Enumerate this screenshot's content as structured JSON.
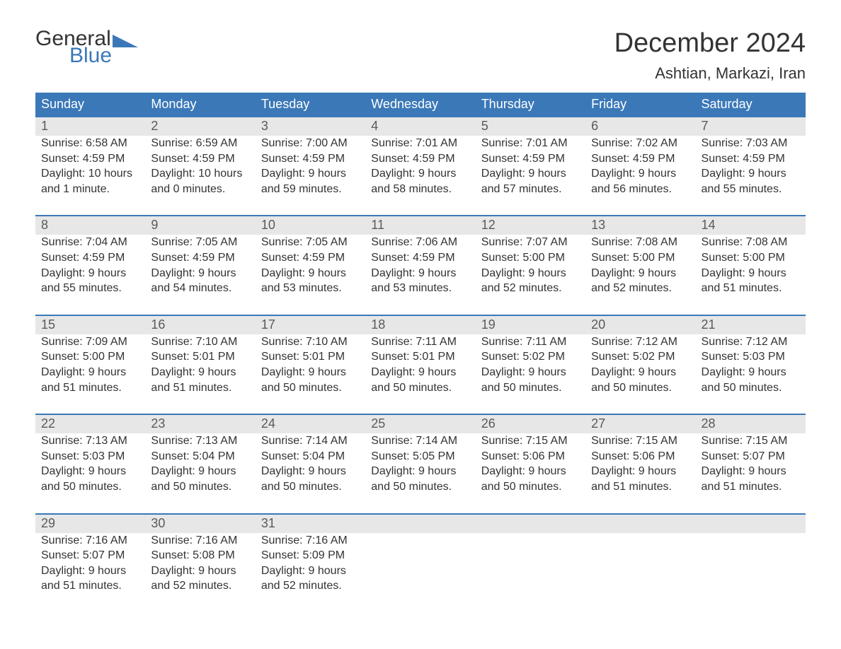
{
  "logo": {
    "line1": "General",
    "line2": "Blue"
  },
  "title": "December 2024",
  "location": "Ashtian, Markazi, Iran",
  "colors": {
    "accent": "#3b78b8",
    "day_bar_bg": "#e7e7e7",
    "text": "#333333",
    "background": "#ffffff"
  },
  "day_labels": [
    "Sunday",
    "Monday",
    "Tuesday",
    "Wednesday",
    "Thursday",
    "Friday",
    "Saturday"
  ],
  "weeks": [
    [
      {
        "n": "1",
        "sunrise": "Sunrise: 6:58 AM",
        "sunset": "Sunset: 4:59 PM",
        "d1": "Daylight: 10 hours",
        "d2": "and 1 minute."
      },
      {
        "n": "2",
        "sunrise": "Sunrise: 6:59 AM",
        "sunset": "Sunset: 4:59 PM",
        "d1": "Daylight: 10 hours",
        "d2": "and 0 minutes."
      },
      {
        "n": "3",
        "sunrise": "Sunrise: 7:00 AM",
        "sunset": "Sunset: 4:59 PM",
        "d1": "Daylight: 9 hours",
        "d2": "and 59 minutes."
      },
      {
        "n": "4",
        "sunrise": "Sunrise: 7:01 AM",
        "sunset": "Sunset: 4:59 PM",
        "d1": "Daylight: 9 hours",
        "d2": "and 58 minutes."
      },
      {
        "n": "5",
        "sunrise": "Sunrise: 7:01 AM",
        "sunset": "Sunset: 4:59 PM",
        "d1": "Daylight: 9 hours",
        "d2": "and 57 minutes."
      },
      {
        "n": "6",
        "sunrise": "Sunrise: 7:02 AM",
        "sunset": "Sunset: 4:59 PM",
        "d1": "Daylight: 9 hours",
        "d2": "and 56 minutes."
      },
      {
        "n": "7",
        "sunrise": "Sunrise: 7:03 AM",
        "sunset": "Sunset: 4:59 PM",
        "d1": "Daylight: 9 hours",
        "d2": "and 55 minutes."
      }
    ],
    [
      {
        "n": "8",
        "sunrise": "Sunrise: 7:04 AM",
        "sunset": "Sunset: 4:59 PM",
        "d1": "Daylight: 9 hours",
        "d2": "and 55 minutes."
      },
      {
        "n": "9",
        "sunrise": "Sunrise: 7:05 AM",
        "sunset": "Sunset: 4:59 PM",
        "d1": "Daylight: 9 hours",
        "d2": "and 54 minutes."
      },
      {
        "n": "10",
        "sunrise": "Sunrise: 7:05 AM",
        "sunset": "Sunset: 4:59 PM",
        "d1": "Daylight: 9 hours",
        "d2": "and 53 minutes."
      },
      {
        "n": "11",
        "sunrise": "Sunrise: 7:06 AM",
        "sunset": "Sunset: 4:59 PM",
        "d1": "Daylight: 9 hours",
        "d2": "and 53 minutes."
      },
      {
        "n": "12",
        "sunrise": "Sunrise: 7:07 AM",
        "sunset": "Sunset: 5:00 PM",
        "d1": "Daylight: 9 hours",
        "d2": "and 52 minutes."
      },
      {
        "n": "13",
        "sunrise": "Sunrise: 7:08 AM",
        "sunset": "Sunset: 5:00 PM",
        "d1": "Daylight: 9 hours",
        "d2": "and 52 minutes."
      },
      {
        "n": "14",
        "sunrise": "Sunrise: 7:08 AM",
        "sunset": "Sunset: 5:00 PM",
        "d1": "Daylight: 9 hours",
        "d2": "and 51 minutes."
      }
    ],
    [
      {
        "n": "15",
        "sunrise": "Sunrise: 7:09 AM",
        "sunset": "Sunset: 5:00 PM",
        "d1": "Daylight: 9 hours",
        "d2": "and 51 minutes."
      },
      {
        "n": "16",
        "sunrise": "Sunrise: 7:10 AM",
        "sunset": "Sunset: 5:01 PM",
        "d1": "Daylight: 9 hours",
        "d2": "and 51 minutes."
      },
      {
        "n": "17",
        "sunrise": "Sunrise: 7:10 AM",
        "sunset": "Sunset: 5:01 PM",
        "d1": "Daylight: 9 hours",
        "d2": "and 50 minutes."
      },
      {
        "n": "18",
        "sunrise": "Sunrise: 7:11 AM",
        "sunset": "Sunset: 5:01 PM",
        "d1": "Daylight: 9 hours",
        "d2": "and 50 minutes."
      },
      {
        "n": "19",
        "sunrise": "Sunrise: 7:11 AM",
        "sunset": "Sunset: 5:02 PM",
        "d1": "Daylight: 9 hours",
        "d2": "and 50 minutes."
      },
      {
        "n": "20",
        "sunrise": "Sunrise: 7:12 AM",
        "sunset": "Sunset: 5:02 PM",
        "d1": "Daylight: 9 hours",
        "d2": "and 50 minutes."
      },
      {
        "n": "21",
        "sunrise": "Sunrise: 7:12 AM",
        "sunset": "Sunset: 5:03 PM",
        "d1": "Daylight: 9 hours",
        "d2": "and 50 minutes."
      }
    ],
    [
      {
        "n": "22",
        "sunrise": "Sunrise: 7:13 AM",
        "sunset": "Sunset: 5:03 PM",
        "d1": "Daylight: 9 hours",
        "d2": "and 50 minutes."
      },
      {
        "n": "23",
        "sunrise": "Sunrise: 7:13 AM",
        "sunset": "Sunset: 5:04 PM",
        "d1": "Daylight: 9 hours",
        "d2": "and 50 minutes."
      },
      {
        "n": "24",
        "sunrise": "Sunrise: 7:14 AM",
        "sunset": "Sunset: 5:04 PM",
        "d1": "Daylight: 9 hours",
        "d2": "and 50 minutes."
      },
      {
        "n": "25",
        "sunrise": "Sunrise: 7:14 AM",
        "sunset": "Sunset: 5:05 PM",
        "d1": "Daylight: 9 hours",
        "d2": "and 50 minutes."
      },
      {
        "n": "26",
        "sunrise": "Sunrise: 7:15 AM",
        "sunset": "Sunset: 5:06 PM",
        "d1": "Daylight: 9 hours",
        "d2": "and 50 minutes."
      },
      {
        "n": "27",
        "sunrise": "Sunrise: 7:15 AM",
        "sunset": "Sunset: 5:06 PM",
        "d1": "Daylight: 9 hours",
        "d2": "and 51 minutes."
      },
      {
        "n": "28",
        "sunrise": "Sunrise: 7:15 AM",
        "sunset": "Sunset: 5:07 PM",
        "d1": "Daylight: 9 hours",
        "d2": "and 51 minutes."
      }
    ],
    [
      {
        "n": "29",
        "sunrise": "Sunrise: 7:16 AM",
        "sunset": "Sunset: 5:07 PM",
        "d1": "Daylight: 9 hours",
        "d2": "and 51 minutes."
      },
      {
        "n": "30",
        "sunrise": "Sunrise: 7:16 AM",
        "sunset": "Sunset: 5:08 PM",
        "d1": "Daylight: 9 hours",
        "d2": "and 52 minutes."
      },
      {
        "n": "31",
        "sunrise": "Sunrise: 7:16 AM",
        "sunset": "Sunset: 5:09 PM",
        "d1": "Daylight: 9 hours",
        "d2": "and 52 minutes."
      },
      null,
      null,
      null,
      null
    ]
  ]
}
